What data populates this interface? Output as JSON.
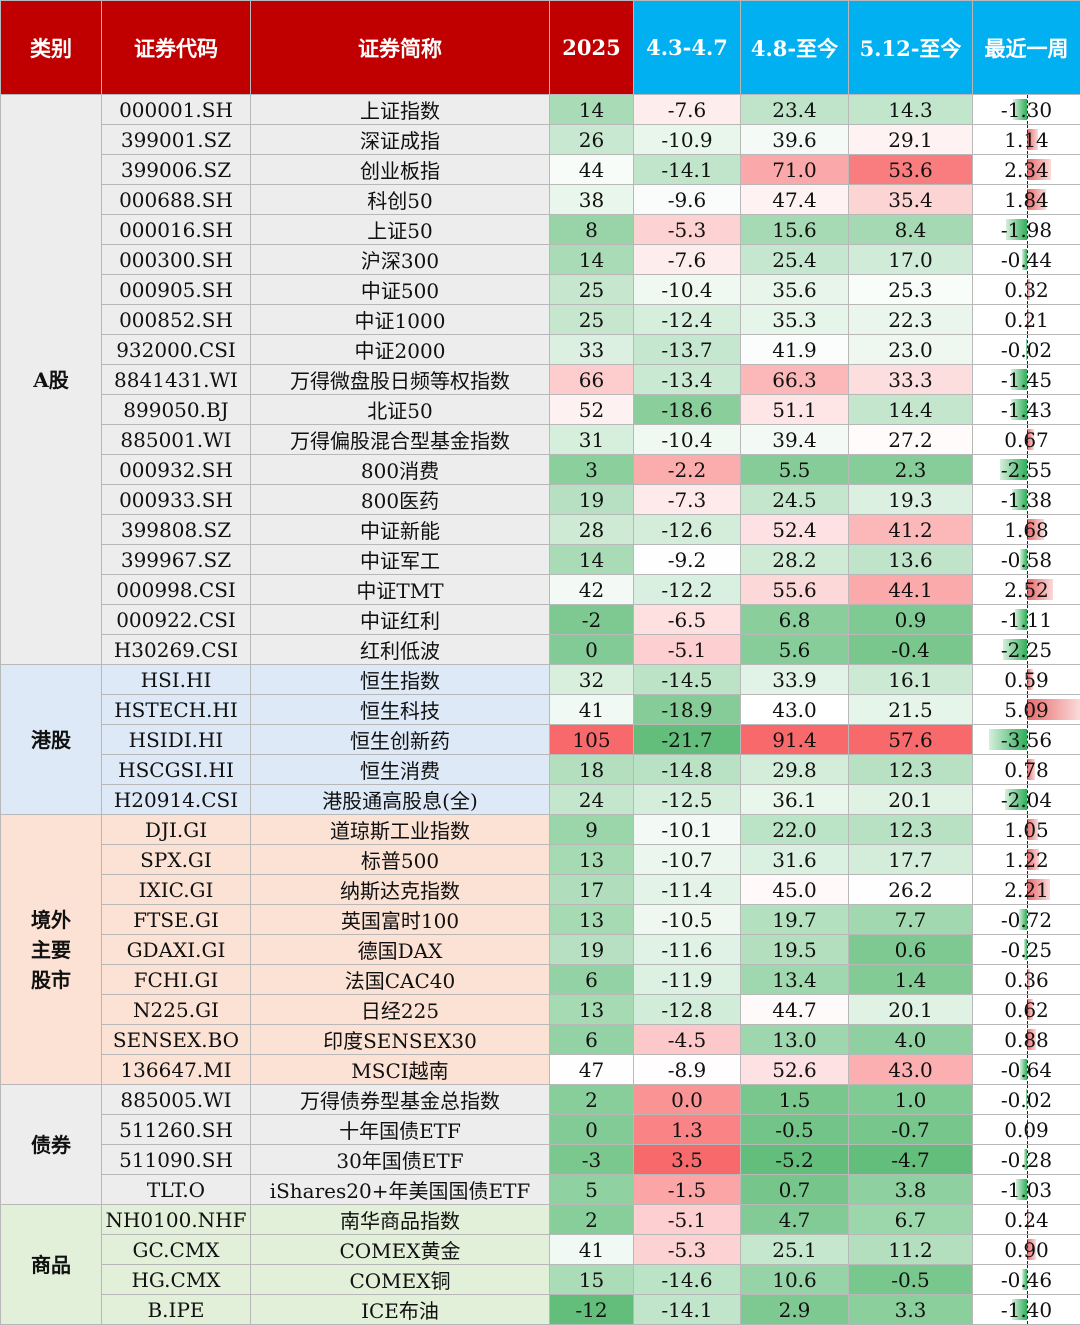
{
  "headers": [
    "类别",
    "证券代码",
    "证券简称",
    "2025",
    "4.3-4.7",
    "4.8-至今",
    "5.12-至今",
    "最近一周"
  ],
  "colors": {
    "header_red": "#c00000",
    "header_blue": "#00b0f0"
  },
  "categories": [
    {
      "label": "A股",
      "key": "a",
      "rows": [
        {
          "code": "000001.SH",
          "name": "上证指数",
          "y2025": "14",
          "p1": "-7.6",
          "p2": "23.4",
          "p3": "14.3",
          "week": "-1.30"
        },
        {
          "code": "399001.SZ",
          "name": "深证成指",
          "y2025": "26",
          "p1": "-10.9",
          "p2": "39.6",
          "p3": "29.1",
          "week": "1.14"
        },
        {
          "code": "399006.SZ",
          "name": "创业板指",
          "y2025": "44",
          "p1": "-14.1",
          "p2": "71.0",
          "p3": "53.6",
          "week": "2.34"
        },
        {
          "code": "000688.SH",
          "name": "科创50",
          "y2025": "38",
          "p1": "-9.6",
          "p2": "47.4",
          "p3": "35.4",
          "week": "1.84"
        },
        {
          "code": "000016.SH",
          "name": "上证50",
          "y2025": "8",
          "p1": "-5.3",
          "p2": "15.6",
          "p3": "8.4",
          "week": "-1.98"
        },
        {
          "code": "000300.SH",
          "name": "沪深300",
          "y2025": "14",
          "p1": "-7.6",
          "p2": "25.4",
          "p3": "17.0",
          "week": "-0.44"
        },
        {
          "code": "000905.SH",
          "name": "中证500",
          "y2025": "25",
          "p1": "-10.4",
          "p2": "35.6",
          "p3": "25.3",
          "week": "0.32"
        },
        {
          "code": "000852.SH",
          "name": "中证1000",
          "y2025": "25",
          "p1": "-12.4",
          "p2": "35.3",
          "p3": "22.3",
          "week": "0.21"
        },
        {
          "code": "932000.CSI",
          "name": "中证2000",
          "y2025": "33",
          "p1": "-13.7",
          "p2": "41.9",
          "p3": "23.0",
          "week": "-0.02"
        },
        {
          "code": "8841431.WI",
          "name": "万得微盘股日频等权指数",
          "y2025": "66",
          "p1": "-13.4",
          "p2": "66.3",
          "p3": "33.3",
          "week": "-1.45"
        },
        {
          "code": "899050.BJ",
          "name": "北证50",
          "y2025": "52",
          "p1": "-18.6",
          "p2": "51.1",
          "p3": "14.4",
          "week": "-1.43"
        },
        {
          "code": "885001.WI",
          "name": "万得偏股混合型基金指数",
          "y2025": "31",
          "p1": "-10.4",
          "p2": "39.4",
          "p3": "27.2",
          "week": "0.67"
        },
        {
          "code": "000932.SH",
          "name": "800消费",
          "y2025": "3",
          "p1": "-2.2",
          "p2": "5.5",
          "p3": "2.3",
          "week": "-2.55"
        },
        {
          "code": "000933.SH",
          "name": "800医药",
          "y2025": "19",
          "p1": "-7.3",
          "p2": "24.5",
          "p3": "19.3",
          "week": "-1.38"
        },
        {
          "code": "399808.SZ",
          "name": "中证新能",
          "y2025": "28",
          "p1": "-12.6",
          "p2": "52.4",
          "p3": "41.2",
          "week": "1.68"
        },
        {
          "code": "399967.SZ",
          "name": "中证军工",
          "y2025": "14",
          "p1": "-9.2",
          "p2": "28.2",
          "p3": "13.6",
          "week": "-0.58"
        },
        {
          "code": "000998.CSI",
          "name": "中证TMT",
          "y2025": "42",
          "p1": "-12.2",
          "p2": "55.6",
          "p3": "44.1",
          "week": "2.52"
        },
        {
          "code": "000922.CSI",
          "name": "中证红利",
          "y2025": "-2",
          "p1": "-6.5",
          "p2": "6.8",
          "p3": "0.9",
          "week": "-1.11"
        },
        {
          "code": "H30269.CSI",
          "name": "红利低波",
          "y2025": "0",
          "p1": "-5.1",
          "p2": "5.6",
          "p3": "-0.4",
          "week": "-2.25"
        }
      ]
    },
    {
      "label": "港股",
      "key": "h",
      "rows": [
        {
          "code": "HSI.HI",
          "name": "恒生指数",
          "y2025": "32",
          "p1": "-14.5",
          "p2": "33.9",
          "p3": "16.1",
          "week": "0.59"
        },
        {
          "code": "HSTECH.HI",
          "name": "恒生科技",
          "y2025": "41",
          "p1": "-18.9",
          "p2": "43.0",
          "p3": "21.5",
          "week": "5.09"
        },
        {
          "code": "HSIDI.HI",
          "name": "恒生创新药",
          "y2025": "105",
          "p1": "-21.7",
          "p2": "91.4",
          "p3": "57.6",
          "week": "-3.56"
        },
        {
          "code": "HSCGSI.HI",
          "name": "恒生消费",
          "y2025": "18",
          "p1": "-14.8",
          "p2": "29.8",
          "p3": "12.3",
          "week": "0.78"
        },
        {
          "code": "H20914.CSI",
          "name": "港股通高股息(全)",
          "y2025": "24",
          "p1": "-12.5",
          "p2": "36.1",
          "p3": "20.1",
          "week": "-2.04"
        }
      ]
    },
    {
      "label": "境外主要股市",
      "key": "o",
      "rows": [
        {
          "code": "DJI.GI",
          "name": "道琼斯工业指数",
          "y2025": "9",
          "p1": "-10.1",
          "p2": "22.0",
          "p3": "12.3",
          "week": "1.05"
        },
        {
          "code": "SPX.GI",
          "name": "标普500",
          "y2025": "13",
          "p1": "-10.7",
          "p2": "31.6",
          "p3": "17.7",
          "week": "1.22"
        },
        {
          "code": "IXIC.GI",
          "name": "纳斯达克指数",
          "y2025": "17",
          "p1": "-11.4",
          "p2": "45.0",
          "p3": "26.2",
          "week": "2.21"
        },
        {
          "code": "FTSE.GI",
          "name": "英国富时100",
          "y2025": "13",
          "p1": "-10.5",
          "p2": "19.7",
          "p3": "7.7",
          "week": "-0.72"
        },
        {
          "code": "GDAXI.GI",
          "name": "德国DAX",
          "y2025": "19",
          "p1": "-11.6",
          "p2": "19.5",
          "p3": "0.6",
          "week": "-0.25"
        },
        {
          "code": "FCHI.GI",
          "name": "法国CAC40",
          "y2025": "6",
          "p1": "-11.9",
          "p2": "13.4",
          "p3": "1.4",
          "week": "0.36"
        },
        {
          "code": "N225.GI",
          "name": "日经225",
          "y2025": "13",
          "p1": "-12.8",
          "p2": "44.7",
          "p3": "20.1",
          "week": "0.62"
        },
        {
          "code": "SENSEX.BO",
          "name": "印度SENSEX30",
          "y2025": "6",
          "p1": "-4.5",
          "p2": "13.0",
          "p3": "4.0",
          "week": "0.88"
        },
        {
          "code": "136647.MI",
          "name": "MSCI越南",
          "y2025": "47",
          "p1": "-8.9",
          "p2": "52.6",
          "p3": "43.0",
          "week": "-0.64"
        }
      ]
    },
    {
      "label": "债券",
      "key": "b",
      "rows": [
        {
          "code": "885005.WI",
          "name": "万得债券型基金总指数",
          "y2025": "2",
          "p1": "0.0",
          "p2": "1.5",
          "p3": "1.0",
          "week": "-0.02"
        },
        {
          "code": "511260.SH",
          "name": "十年国债ETF",
          "y2025": "0",
          "p1": "1.3",
          "p2": "-0.5",
          "p3": "-0.7",
          "week": "0.09"
        },
        {
          "code": "511090.SH",
          "name": "30年国债ETF",
          "y2025": "-3",
          "p1": "3.5",
          "p2": "-5.2",
          "p3": "-4.7",
          "week": "-0.28"
        },
        {
          "code": "TLT.O",
          "name": "iShares20+年美国国债ETF",
          "y2025": "5",
          "p1": "-1.5",
          "p2": "0.7",
          "p3": "3.8",
          "week": "-1.03"
        }
      ]
    },
    {
      "label": "商品",
      "key": "c",
      "rows": [
        {
          "code": "NH0100.NHF",
          "name": "南华商品指数",
          "y2025": "2",
          "p1": "-5.1",
          "p2": "4.7",
          "p3": "6.7",
          "week": "0.24"
        },
        {
          "code": "GC.CMX",
          "name": "COMEX黄金",
          "y2025": "41",
          "p1": "-5.3",
          "p2": "25.1",
          "p3": "11.2",
          "week": "0.90"
        },
        {
          "code": "HG.CMX",
          "name": "COMEX铜",
          "y2025": "15",
          "p1": "-14.6",
          "p2": "10.6",
          "p3": "-0.5",
          "week": "-0.46"
        },
        {
          "code": "B.IPE",
          "name": "ICE布油",
          "y2025": "-12",
          "p1": "-14.1",
          "p2": "2.9",
          "p3": "3.3",
          "week": "-1.40"
        }
      ]
    }
  ]
}
